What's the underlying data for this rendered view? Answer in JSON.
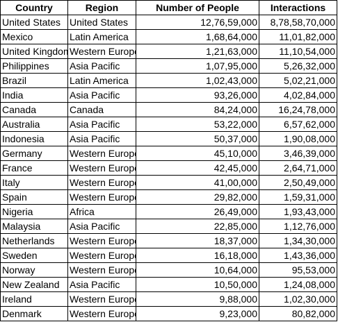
{
  "headers": [
    "Country",
    "Region",
    "Number of People",
    "Interactions"
  ],
  "rows": [
    [
      "United States",
      "United States",
      "12,76,59,000",
      "8,78,58,70,000"
    ],
    [
      "Mexico",
      "Latin America",
      "1,68,64,000",
      "11,01,82,000"
    ],
    [
      "United Kingdom",
      "Western Europe",
      "1,21,63,000",
      "11,10,54,000"
    ],
    [
      "Philippines",
      "Asia Pacific",
      "1,07,95,000",
      "5,26,32,000"
    ],
    [
      "Brazil",
      "Latin America",
      "1,02,43,000",
      "5,02,21,000"
    ],
    [
      "India",
      "Asia Pacific",
      "93,26,000",
      "4,02,84,000"
    ],
    [
      "Canada",
      "Canada",
      "84,24,000",
      "16,24,78,000"
    ],
    [
      "Australia",
      "Asia Pacific",
      "53,22,000",
      "6,57,62,000"
    ],
    [
      "Indonesia",
      "Asia Pacific",
      "50,37,000",
      "1,90,08,000"
    ],
    [
      "Germany",
      "Western Europe",
      "45,10,000",
      "3,46,39,000"
    ],
    [
      "France",
      "Western Europe",
      "42,45,000",
      "2,64,71,000"
    ],
    [
      "Italy",
      "Western Europe",
      "41,00,000",
      "2,50,49,000"
    ],
    [
      "Spain",
      "Western Europe",
      "29,82,000",
      "1,59,31,000"
    ],
    [
      "Nigeria",
      "Africa",
      "26,49,000",
      "1,93,43,000"
    ],
    [
      "Malaysia",
      "Asia Pacific",
      "22,85,000",
      "1,12,76,000"
    ],
    [
      "Netherlands",
      "Western Europe",
      "18,37,000",
      "1,34,30,000"
    ],
    [
      "Sweden",
      "Western Europe",
      "16,18,000",
      "1,43,36,000"
    ],
    [
      "Norway",
      "Western Europe",
      "10,64,000",
      "95,53,000"
    ],
    [
      "New Zealand",
      "Asia Pacific",
      "10,50,000",
      "1,24,08,000"
    ],
    [
      "Ireland",
      "Western Europe",
      "9,88,000",
      "1,02,30,000"
    ],
    [
      "Denmark",
      "Western Europe",
      "9,23,000",
      "80,82,000"
    ]
  ]
}
